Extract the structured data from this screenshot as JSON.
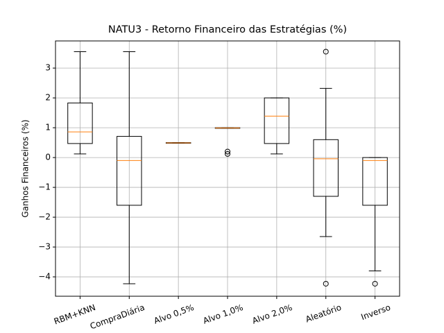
{
  "chart_data": {
    "type": "boxplot",
    "title": "NATU3 - Retorno Financeiro das Estratégias (%)",
    "y_label": "Ganhos Financeiros (%)",
    "categories": [
      "RBM+KNN",
      "CompraDiária",
      "Alvo 0,5%",
      "Alvo 1,0%",
      "Alvo 2,0%",
      "Aleatório",
      "Inverso"
    ],
    "boxes": [
      {
        "whislo": 0.12,
        "q1": 0.47,
        "med": 0.86,
        "q3": 1.83,
        "whishi": 3.55,
        "fliers": []
      },
      {
        "whislo": -4.23,
        "q1": -1.6,
        "med": -0.1,
        "q3": 0.71,
        "whishi": 3.55,
        "fliers": []
      },
      {
        "whislo": 0.48,
        "q1": 0.48,
        "med": 0.49,
        "q3": 0.5,
        "whishi": 0.5,
        "fliers": []
      },
      {
        "whislo": 0.98,
        "q1": 0.98,
        "med": 0.99,
        "q3": 1.0,
        "whishi": 1.0,
        "fliers": [
          0.2,
          0.12
        ]
      },
      {
        "whislo": 0.12,
        "q1": 0.47,
        "med": 1.39,
        "q3": 2.0,
        "whishi": 2.0,
        "fliers": []
      },
      {
        "whislo": -2.65,
        "q1": -1.3,
        "med": -0.04,
        "q3": 0.6,
        "whishi": 2.32,
        "fliers": [
          3.55,
          -4.23
        ]
      },
      {
        "whislo": -3.8,
        "q1": -1.6,
        "med": -0.1,
        "q3": 0.0,
        "whishi": 0.0,
        "fliers": [
          -4.23
        ]
      }
    ],
    "box_color": "#000000",
    "median_color": "#ff7f0e",
    "ylim": [
      -4.65,
      3.91
    ],
    "yticks": [
      {
        "value": -4,
        "label": "−4"
      },
      {
        "value": -3,
        "label": "−3"
      },
      {
        "value": -2,
        "label": "−2"
      },
      {
        "value": -1,
        "label": "−1"
      },
      0,
      1,
      2,
      3
    ],
    "grid": true
  }
}
